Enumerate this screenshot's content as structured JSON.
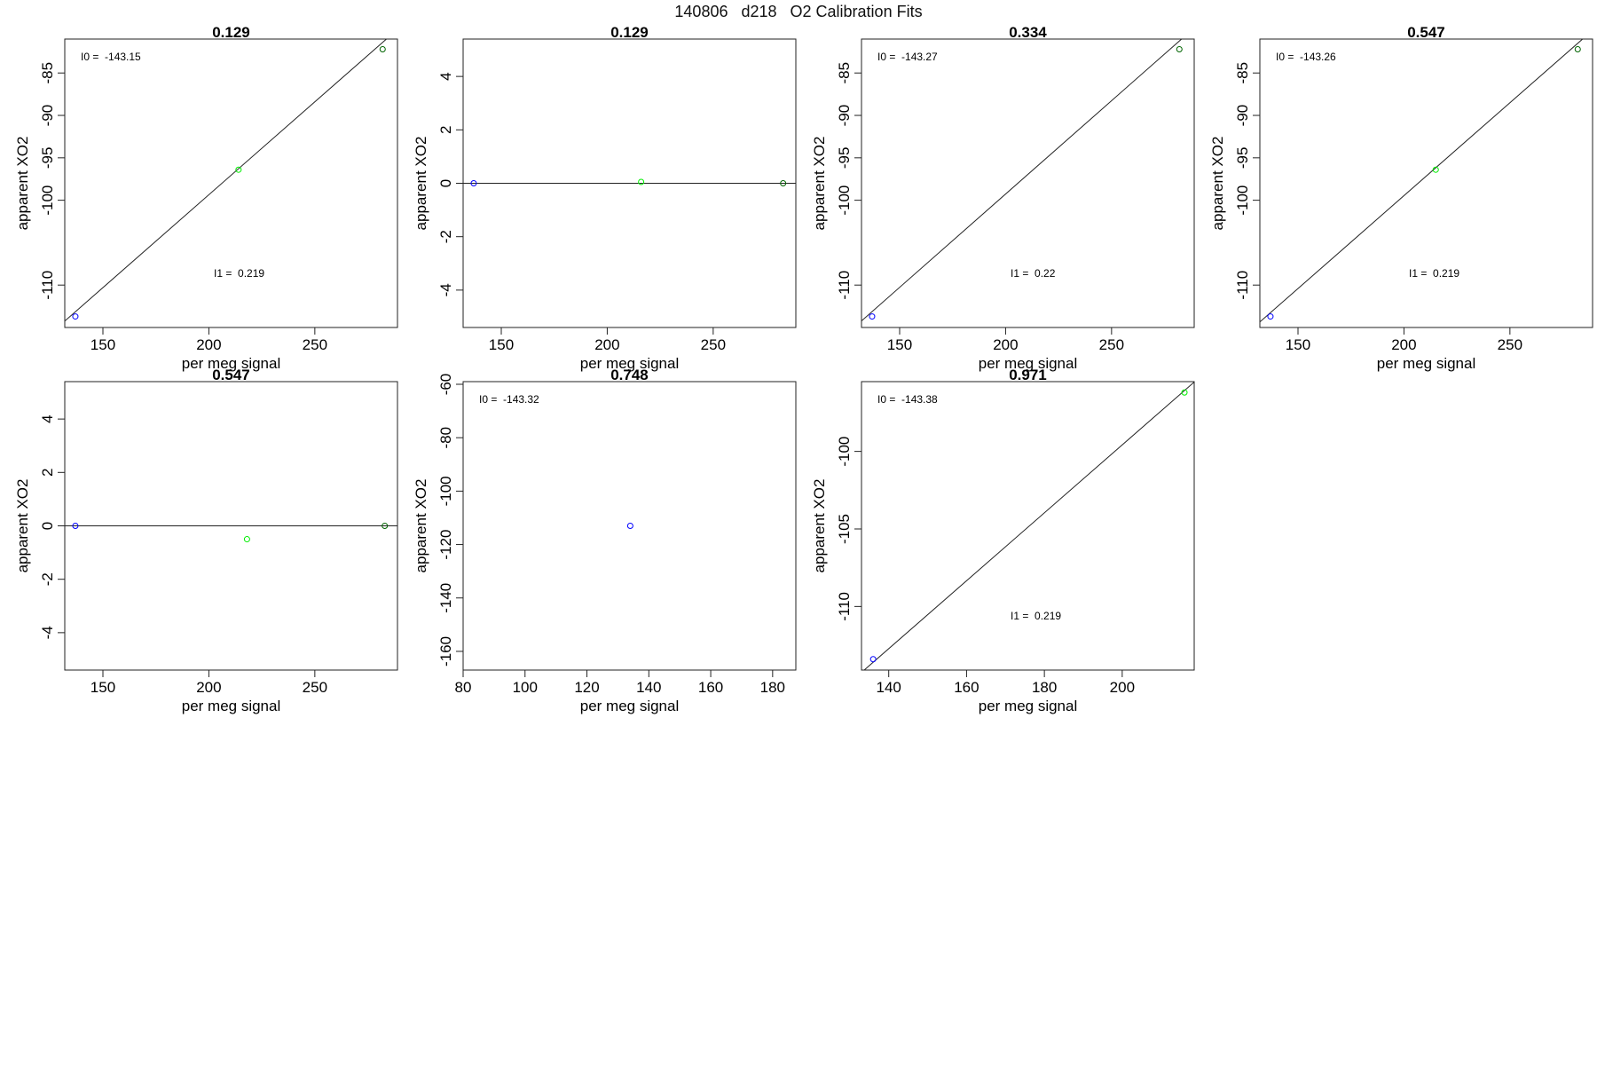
{
  "page": {
    "title": "140806   d218   O2 Calibration Fits"
  },
  "colors": {
    "axis": "#222222",
    "fit_line": "#222222",
    "point_blue": "#0000ff",
    "point_green": "#00ee00",
    "point_darkgreen": "#006400"
  },
  "chart_data": [
    {
      "type": "scatter",
      "title": "0.129",
      "xlabel": "per meg signal",
      "ylabel": "apparent XO2",
      "xlim": [
        132,
        289
      ],
      "ylim": [
        -115,
        -81
      ],
      "xticks": [
        150,
        200,
        250
      ],
      "yticks": [
        -85,
        -90,
        -95,
        -100,
        -110
      ],
      "points": [
        {
          "x": 137,
          "y": -113.7,
          "color": "blue"
        },
        {
          "x": 214,
          "y": -96.4,
          "color": "green"
        },
        {
          "x": 282,
          "y": -82.2,
          "color": "darkgreen"
        }
      ],
      "fit_line": {
        "intercept": -143.15,
        "slope": 0.219
      },
      "annotations": {
        "i0": "I0 =  -143.15",
        "i1": "I1 =  0.219"
      }
    },
    {
      "type": "scatter",
      "title": "0.129",
      "xlabel": "per meg signal",
      "ylabel": "apparent XO2",
      "xlim": [
        132,
        289
      ],
      "ylim": [
        -5.4,
        5.4
      ],
      "xticks": [
        150,
        200,
        250
      ],
      "yticks": [
        4,
        2,
        0,
        -2,
        -4
      ],
      "points": [
        {
          "x": 137,
          "y": 0,
          "color": "blue"
        },
        {
          "x": 216,
          "y": 0.05,
          "color": "green"
        },
        {
          "x": 283,
          "y": 0,
          "color": "darkgreen"
        }
      ],
      "fit_line": {
        "intercept": 0,
        "slope": 0
      },
      "annotations": {
        "i0": "",
        "i1": ""
      }
    },
    {
      "type": "scatter",
      "title": "0.334",
      "xlabel": "per meg signal",
      "ylabel": "apparent XO2",
      "xlim": [
        132,
        289
      ],
      "ylim": [
        -115,
        -81
      ],
      "xticks": [
        150,
        200,
        250
      ],
      "yticks": [
        -85,
        -90,
        -95,
        -100,
        -110
      ],
      "points": [
        {
          "x": 137,
          "y": -113.7,
          "color": "blue"
        },
        {
          "x": 282,
          "y": -82.2,
          "color": "darkgreen"
        }
      ],
      "fit_line": {
        "intercept": -143.27,
        "slope": 0.22
      },
      "annotations": {
        "i0": "I0 =  -143.27",
        "i1": "I1 =  0.22"
      }
    },
    {
      "type": "scatter",
      "title": "0.547",
      "xlabel": "per meg signal",
      "ylabel": "apparent XO2",
      "xlim": [
        132,
        289
      ],
      "ylim": [
        -115,
        -81
      ],
      "xticks": [
        150,
        200,
        250
      ],
      "yticks": [
        -85,
        -90,
        -95,
        -100,
        -110
      ],
      "points": [
        {
          "x": 137,
          "y": -113.7,
          "color": "blue"
        },
        {
          "x": 215,
          "y": -96.4,
          "color": "green"
        },
        {
          "x": 282,
          "y": -82.2,
          "color": "darkgreen"
        }
      ],
      "fit_line": {
        "intercept": -143.26,
        "slope": 0.219
      },
      "annotations": {
        "i0": "I0 =  -143.26",
        "i1": "I1 =  0.219"
      }
    },
    {
      "type": "scatter",
      "title": "0.547",
      "xlabel": "per meg signal",
      "ylabel": "apparent XO2",
      "xlim": [
        132,
        289
      ],
      "ylim": [
        -5.4,
        5.4
      ],
      "xticks": [
        150,
        200,
        250
      ],
      "yticks": [
        4,
        2,
        0,
        -2,
        -4
      ],
      "points": [
        {
          "x": 137,
          "y": 0,
          "color": "blue"
        },
        {
          "x": 218,
          "y": -0.5,
          "color": "green"
        },
        {
          "x": 283,
          "y": 0,
          "color": "darkgreen"
        }
      ],
      "fit_line": {
        "intercept": 0,
        "slope": 0
      },
      "annotations": {
        "i0": "",
        "i1": ""
      }
    },
    {
      "type": "scatter",
      "title": "0.748",
      "xlabel": "per meg signal",
      "ylabel": "apparent XO2",
      "xlim": [
        80,
        187.5
      ],
      "ylim": [
        -167,
        -59
      ],
      "xticks": [
        80,
        100,
        120,
        140,
        160,
        180
      ],
      "yticks": [
        -60,
        -80,
        -100,
        -120,
        -140,
        -160
      ],
      "points": [
        {
          "x": 134,
          "y": -113,
          "color": "blue"
        }
      ],
      "fit_line": null,
      "annotations": {
        "i0": "I0 =  -143.32",
        "i1": ""
      }
    },
    {
      "type": "scatter",
      "title": "0.971",
      "xlabel": "per meg signal",
      "ylabel": "apparent XO2",
      "xlim": [
        133,
        218.5
      ],
      "ylim": [
        -114.1,
        -95.5
      ],
      "xticks": [
        140,
        160,
        180,
        200
      ],
      "yticks": [
        -100,
        -105,
        -110
      ],
      "points": [
        {
          "x": 136,
          "y": -113.4,
          "color": "blue"
        },
        {
          "x": 216,
          "y": -96.2,
          "color": "green"
        }
      ],
      "fit_line": {
        "intercept": -143.38,
        "slope": 0.219
      },
      "annotations": {
        "i0": "I0 =  -143.38",
        "i1": "I1 =  0.219"
      }
    }
  ]
}
